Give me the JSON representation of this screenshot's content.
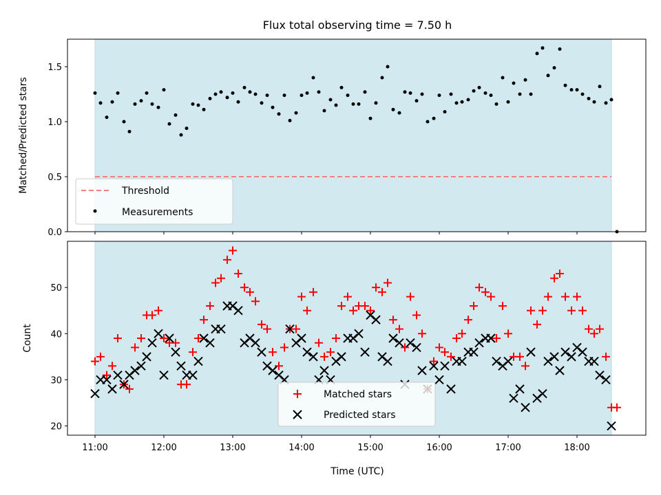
{
  "chart_data": [
    {
      "type": "scatter",
      "title": "Flux total observing time = 7.50 h",
      "ylabel": "Matched/Predicted stars",
      "xlabel": "",
      "xlim": [
        10.6,
        19.0
      ],
      "ylim": [
        0.0,
        1.75
      ],
      "yticks": [
        0.0,
        0.5,
        1.0,
        1.5
      ],
      "ytick_labels": [
        "0.0",
        "0.5",
        "1.0",
        "1.5"
      ],
      "xticks": [
        11,
        12,
        13,
        14,
        15,
        16,
        17,
        18
      ],
      "grid": false,
      "legend_position": "lower-left",
      "shaded_interval": {
        "x": [
          11.0,
          18.5
        ],
        "color": "#d3e9f0"
      },
      "threshold": {
        "name": "Threshold",
        "y": 0.5,
        "x": [
          11.0,
          18.5
        ],
        "color": "#f08080",
        "style": "dashed"
      },
      "series": [
        {
          "name": "Measurements",
          "marker": "dot",
          "color": "#000000",
          "x": [
            11.0,
            11.08,
            11.17,
            11.25,
            11.33,
            11.42,
            11.5,
            11.58,
            11.67,
            11.75,
            11.83,
            11.92,
            12.0,
            12.08,
            12.17,
            12.25,
            12.33,
            12.42,
            12.5,
            12.58,
            12.67,
            12.75,
            12.83,
            12.92,
            13.0,
            13.08,
            13.17,
            13.25,
            13.33,
            13.42,
            13.5,
            13.58,
            13.67,
            13.75,
            13.83,
            13.92,
            14.0,
            14.08,
            14.17,
            14.25,
            14.33,
            14.42,
            14.5,
            14.58,
            14.67,
            14.75,
            14.83,
            14.92,
            15.0,
            15.08,
            15.17,
            15.25,
            15.33,
            15.42,
            15.5,
            15.58,
            15.67,
            15.75,
            15.83,
            15.92,
            16.0,
            16.08,
            16.17,
            16.25,
            16.33,
            16.42,
            16.5,
            16.58,
            16.67,
            16.75,
            16.83,
            16.92,
            17.0,
            17.08,
            17.17,
            17.25,
            17.33,
            17.42,
            17.5,
            17.58,
            17.67,
            17.75,
            17.83,
            17.92,
            18.0,
            18.08,
            18.17,
            18.25,
            18.33,
            18.42,
            18.5,
            18.58
          ],
          "y": [
            1.26,
            1.17,
            1.04,
            1.18,
            1.26,
            1.0,
            0.91,
            1.16,
            1.19,
            1.26,
            1.16,
            1.13,
            1.29,
            0.98,
            1.06,
            0.88,
            0.94,
            1.16,
            1.15,
            1.11,
            1.21,
            1.25,
            1.27,
            1.22,
            1.26,
            1.18,
            1.31,
            1.27,
            1.25,
            1.17,
            1.24,
            1.13,
            1.07,
            1.24,
            1.01,
            1.08,
            1.24,
            1.26,
            1.4,
            1.27,
            1.1,
            1.2,
            1.15,
            1.31,
            1.24,
            1.16,
            1.16,
            1.27,
            1.03,
            1.17,
            1.4,
            1.5,
            1.11,
            1.08,
            1.27,
            1.26,
            1.19,
            1.25,
            1.0,
            1.03,
            1.24,
            1.09,
            1.25,
            1.17,
            1.18,
            1.2,
            1.28,
            1.31,
            1.26,
            1.24,
            1.16,
            1.4,
            1.18,
            1.35,
            1.25,
            1.38,
            1.25,
            1.62,
            1.67,
            1.42,
            1.49,
            1.66,
            1.33,
            1.29,
            1.29,
            1.25,
            1.21,
            1.18,
            1.32,
            1.17,
            1.2,
            0.0
          ]
        }
      ]
    },
    {
      "type": "scatter",
      "title": "",
      "xlabel": "Time (UTC)",
      "ylabel": "Count",
      "xlim": [
        10.6,
        19.0
      ],
      "ylim": [
        18,
        60
      ],
      "yticks": [
        20,
        30,
        40,
        50
      ],
      "ytick_labels": [
        "20",
        "30",
        "40",
        "50"
      ],
      "xticks": [
        11,
        12,
        13,
        14,
        15,
        16,
        17,
        18
      ],
      "xtick_labels": [
        "11:00",
        "12:00",
        "13:00",
        "14:00",
        "15:00",
        "16:00",
        "17:00",
        "18:00"
      ],
      "grid": false,
      "legend_position": "lower-center",
      "shaded_interval": {
        "x": [
          11.0,
          18.5
        ],
        "color": "#d3e9f0"
      },
      "series": [
        {
          "name": "Matched stars",
          "marker": "plus",
          "color": "#ff0000",
          "x": [
            11.0,
            11.08,
            11.17,
            11.25,
            11.33,
            11.42,
            11.5,
            11.58,
            11.67,
            11.75,
            11.83,
            11.92,
            12.0,
            12.08,
            12.17,
            12.25,
            12.33,
            12.42,
            12.5,
            12.58,
            12.67,
            12.75,
            12.83,
            12.92,
            13.0,
            13.08,
            13.17,
            13.25,
            13.33,
            13.42,
            13.5,
            13.58,
            13.67,
            13.75,
            13.83,
            13.92,
            14.0,
            14.08,
            14.17,
            14.25,
            14.33,
            14.42,
            14.5,
            14.58,
            14.67,
            14.75,
            14.83,
            14.92,
            15.0,
            15.08,
            15.17,
            15.25,
            15.33,
            15.42,
            15.5,
            15.58,
            15.67,
            15.75,
            15.83,
            15.92,
            16.0,
            16.08,
            16.17,
            16.25,
            16.33,
            16.42,
            16.5,
            16.58,
            16.67,
            16.75,
            16.83,
            16.92,
            17.0,
            17.08,
            17.17,
            17.25,
            17.33,
            17.42,
            17.5,
            17.58,
            17.67,
            17.75,
            17.83,
            17.92,
            18.0,
            18.08,
            18.17,
            18.25,
            18.33,
            18.42,
            18.5,
            18.58
          ],
          "y": [
            34,
            35,
            31,
            33,
            39,
            29,
            28,
            37,
            39,
            44,
            44,
            45,
            39,
            38,
            38,
            29,
            29,
            36,
            39,
            43,
            46,
            51,
            52,
            56,
            58,
            53,
            50,
            49,
            47,
            42,
            41,
            36,
            33,
            37,
            41,
            41,
            48,
            45,
            49,
            38,
            35,
            36,
            39,
            46,
            48,
            45,
            46,
            46,
            45,
            50,
            49,
            51,
            43,
            41,
            37,
            48,
            44,
            40,
            28,
            34,
            37,
            36,
            35,
            39,
            40,
            43,
            46,
            50,
            49,
            48,
            39,
            46,
            40,
            35,
            35,
            33,
            45,
            42,
            45,
            48,
            52,
            53,
            48,
            45,
            48,
            45,
            41,
            40,
            41,
            35,
            24,
            24
          ]
        },
        {
          "name": "Predicted stars",
          "marker": "x",
          "color": "#000000",
          "x": [
            11.0,
            11.08,
            11.17,
            11.25,
            11.33,
            11.42,
            11.5,
            11.58,
            11.67,
            11.75,
            11.83,
            11.92,
            12.0,
            12.08,
            12.17,
            12.25,
            12.33,
            12.42,
            12.5,
            12.58,
            12.67,
            12.75,
            12.83,
            12.92,
            13.0,
            13.08,
            13.17,
            13.25,
            13.33,
            13.42,
            13.5,
            13.58,
            13.67,
            13.75,
            13.83,
            13.92,
            14.0,
            14.08,
            14.17,
            14.25,
            14.33,
            14.42,
            14.5,
            14.58,
            14.67,
            14.75,
            14.83,
            14.92,
            15.0,
            15.08,
            15.17,
            15.25,
            15.33,
            15.42,
            15.5,
            15.58,
            15.67,
            15.75,
            15.83,
            15.92,
            16.0,
            16.08,
            16.17,
            16.25,
            16.33,
            16.42,
            16.5,
            16.58,
            16.67,
            16.75,
            16.83,
            16.92,
            17.0,
            17.08,
            17.17,
            17.25,
            17.33,
            17.42,
            17.5,
            17.58,
            17.67,
            17.75,
            17.83,
            17.92,
            18.0,
            18.08,
            18.17,
            18.25,
            18.33,
            18.42,
            18.5
          ],
          "y": [
            27,
            30,
            30,
            28,
            31,
            29,
            31,
            32,
            33,
            35,
            38,
            40,
            31,
            39,
            36,
            33,
            31,
            31,
            34,
            39,
            38,
            41,
            41,
            46,
            46,
            45,
            38,
            39,
            38,
            36,
            33,
            32,
            31,
            30,
            41,
            38,
            39,
            36,
            35,
            30,
            32,
            30,
            34,
            35,
            39,
            39,
            40,
            36,
            44,
            43,
            35,
            34,
            39,
            38,
            29,
            38,
            37,
            32,
            28,
            33,
            30,
            33,
            28,
            34,
            34,
            36,
            36,
            38,
            39,
            39,
            34,
            33,
            34,
            26,
            28,
            24,
            36,
            26,
            27,
            34,
            35,
            32,
            36,
            35,
            37,
            36,
            34,
            34,
            31,
            30,
            20
          ]
        }
      ]
    }
  ]
}
